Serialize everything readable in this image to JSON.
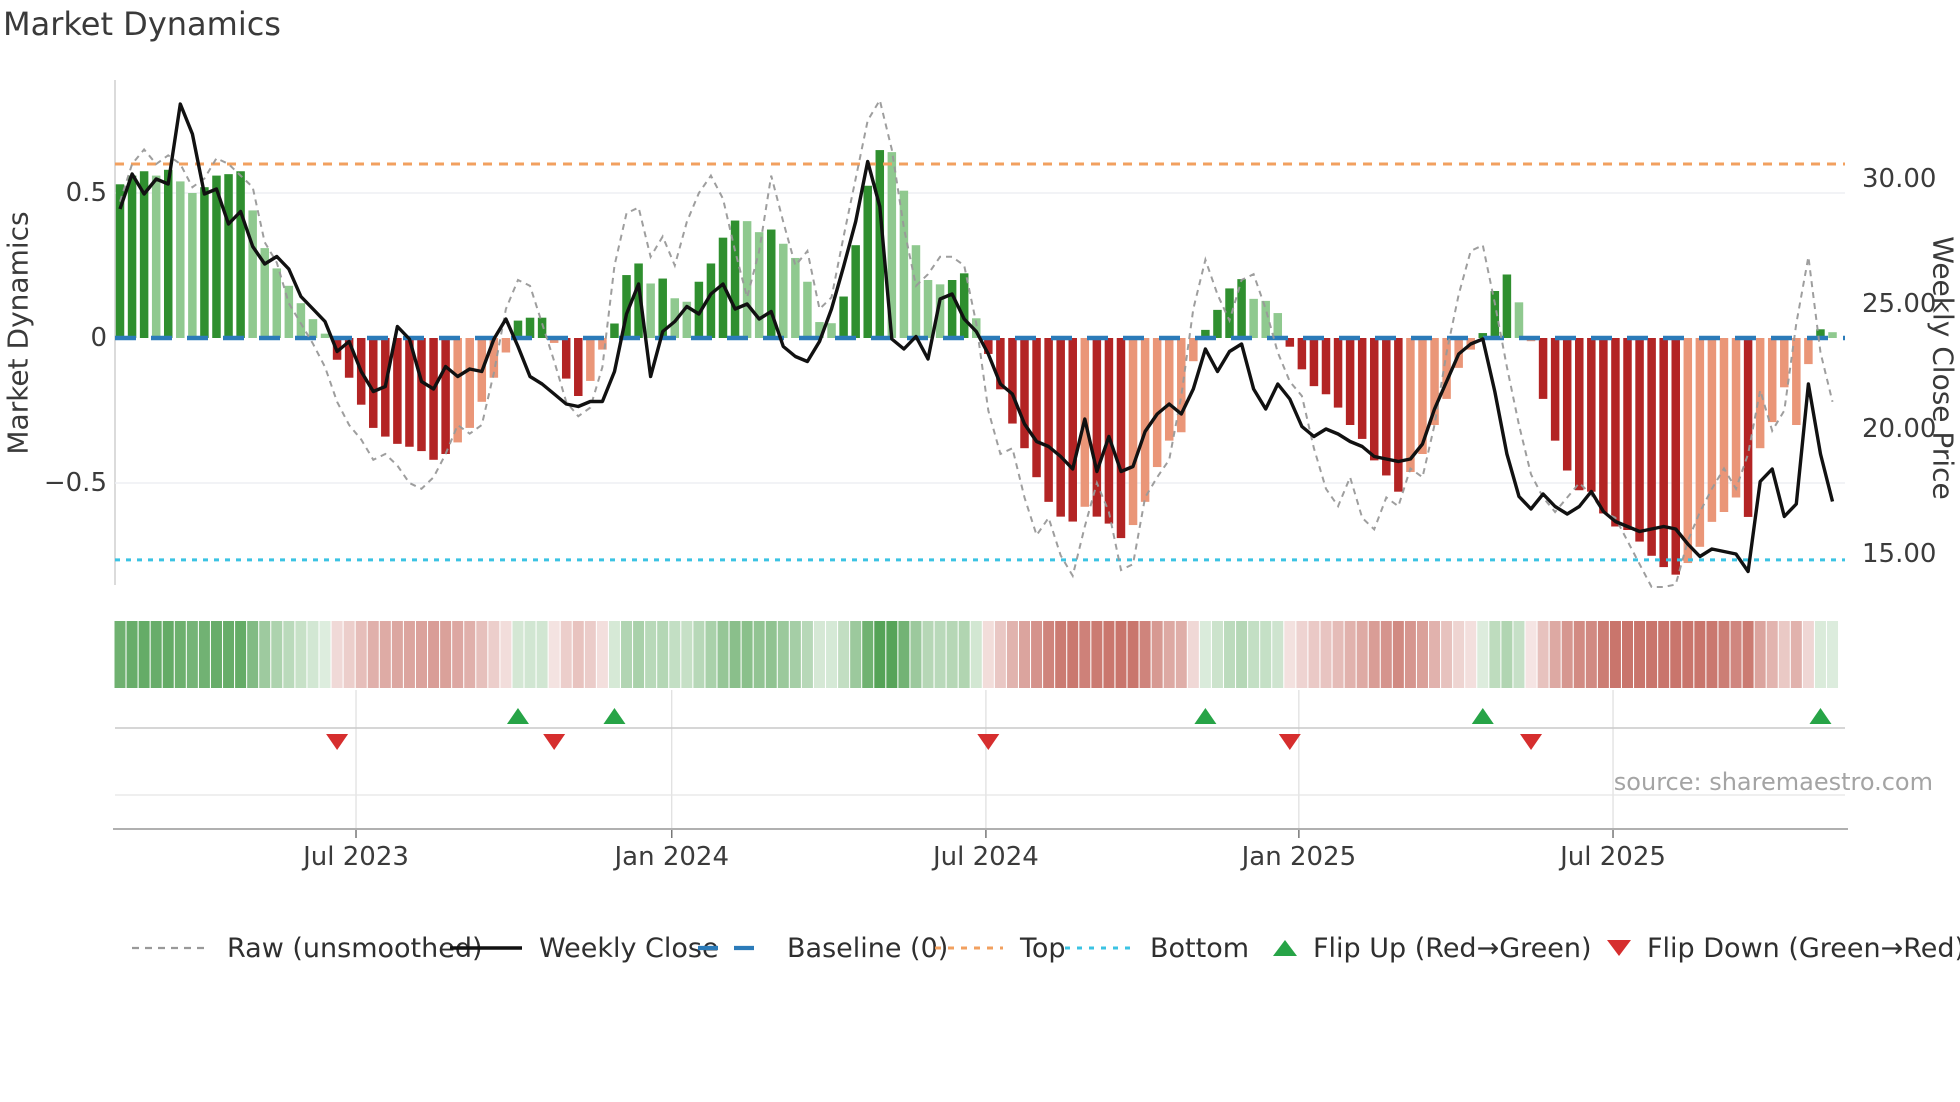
{
  "title": "Market Dynamics",
  "source_credit": "source: sharemaestro.com",
  "axes": {
    "left_label": "Market Dynamics",
    "right_label": "Weekly Close Price",
    "left_ticks": [
      {
        "label": "0.5",
        "value": 0.5
      },
      {
        "label": "0",
        "value": 0
      },
      {
        "label": "−0.5",
        "value": -0.5
      }
    ],
    "right_ticks": [
      {
        "label": "30.00",
        "value": 30
      },
      {
        "label": "25.00",
        "value": 25
      },
      {
        "label": "20.00",
        "value": 20
      },
      {
        "label": "15.00",
        "value": 15
      }
    ],
    "x_ticks": [
      {
        "label": "Jul 2023",
        "week": 19.57
      },
      {
        "label": "Jan 2024",
        "week": 45.75
      },
      {
        "label": "Jul 2024",
        "week": 71.8
      },
      {
        "label": "Jan 2025",
        "week": 97.75
      },
      {
        "label": "Jul 2025",
        "week": 123.8
      }
    ]
  },
  "legend": [
    {
      "label": "Raw (unsmoothed)",
      "swatch": "gray-dashed-line"
    },
    {
      "label": "Weekly Close",
      "swatch": "black-solid-line"
    },
    {
      "label": "Baseline (0)",
      "swatch": "blue-dashed-line"
    },
    {
      "label": "Top",
      "swatch": "orange-dotted-line"
    },
    {
      "label": "Bottom",
      "swatch": "cyan-dotted-line"
    },
    {
      "label": "Flip Up (Red→Green)",
      "swatch": "green-up-triangle"
    },
    {
      "label": "Flip Down (Green→Red)",
      "swatch": "red-down-triangle"
    }
  ],
  "colors": {
    "bar_green_dark": "#2f8f2f",
    "bar_green_light": "#8fc98f",
    "bar_red_dark": "#b32424",
    "bar_red_light": "#ea9678",
    "baseline_blue": "#2b7bb9",
    "top_orange": "#f2a05f",
    "bottom_cyan": "#3bc3e3",
    "raw_gray": "#999999",
    "close_black": "#111111",
    "flip_up_green": "#27a447",
    "flip_down_red": "#d62e2e",
    "heat_green_strong": "#55a357",
    "heat_red_strong": "#c9756c",
    "grid": "#edeff4",
    "text": "#3b3b3b"
  },
  "chart_data": {
    "type": "bar",
    "x_unit": "week_index",
    "n_weeks": 143,
    "title": "Market Dynamics",
    "ylabel_left": "Market Dynamics",
    "ylabel_right": "Weekly Close Price",
    "ylim_left": [
      -0.85,
      0.89
    ],
    "ylim_right": [
      13.8,
      34.0
    ],
    "guides": {
      "baseline": 0,
      "top": 0.6,
      "bottom": -0.765
    },
    "flip_up_weeks": [
      33,
      41,
      90,
      113,
      141
    ],
    "flip_down_weeks": [
      18,
      36,
      72,
      97,
      117
    ],
    "series": [
      {
        "name": "Market Dynamics (smoothed bars)",
        "type": "bar",
        "axis": "left",
        "values": [
          0.53,
          0.56,
          0.575,
          0.56,
          0.58,
          0.54,
          0.5,
          0.52,
          0.56,
          0.565,
          0.575,
          0.44,
          0.31,
          0.24,
          0.18,
          0.12,
          0.065,
          0.015,
          -0.075,
          -0.137,
          -0.23,
          -0.31,
          -0.34,
          -0.365,
          -0.375,
          -0.39,
          -0.42,
          -0.4,
          -0.36,
          -0.31,
          -0.22,
          -0.137,
          -0.05,
          0.06,
          0.07,
          0.07,
          -0.017,
          -0.14,
          -0.2,
          -0.148,
          -0.04,
          0.05,
          0.217,
          0.257,
          0.188,
          0.205,
          0.137,
          0.125,
          0.194,
          0.257,
          0.346,
          0.405,
          0.403,
          0.365,
          0.374,
          0.325,
          0.276,
          0.194,
          0.055,
          0.051,
          0.143,
          0.32,
          0.525,
          0.648,
          0.641,
          0.508,
          0.32,
          0.2,
          0.185,
          0.2,
          0.223,
          0.068,
          -0.055,
          -0.177,
          -0.295,
          -0.38,
          -0.48,
          -0.565,
          -0.616,
          -0.633,
          -0.582,
          -0.616,
          -0.64,
          -0.69,
          -0.645,
          -0.565,
          -0.445,
          -0.354,
          -0.325,
          -0.08,
          0.028,
          0.097,
          0.171,
          0.203,
          0.135,
          0.128,
          0.086,
          -0.03,
          -0.108,
          -0.166,
          -0.194,
          -0.24,
          -0.3,
          -0.348,
          -0.422,
          -0.474,
          -0.53,
          -0.462,
          -0.4,
          -0.3,
          -0.21,
          -0.103,
          -0.04,
          0.017,
          0.162,
          0.219,
          0.123,
          -0.011,
          -0.21,
          -0.354,
          -0.457,
          -0.525,
          -0.53,
          -0.605,
          -0.65,
          -0.662,
          -0.702,
          -0.751,
          -0.79,
          -0.816,
          -0.776,
          -0.72,
          -0.634,
          -0.6,
          -0.55,
          -0.617,
          -0.38,
          -0.29,
          -0.17,
          -0.3,
          -0.09,
          0.03,
          0.02
        ],
        "dark_shade": [
          1,
          1,
          1,
          0,
          1,
          0,
          0,
          1,
          1,
          1,
          1,
          0,
          0,
          0,
          0,
          0,
          0,
          0,
          1,
          1,
          1,
          1,
          1,
          1,
          1,
          1,
          1,
          1,
          0,
          0,
          0,
          0,
          0,
          1,
          1,
          1,
          0,
          1,
          1,
          0,
          0,
          1,
          1,
          1,
          0,
          1,
          0,
          0,
          1,
          1,
          1,
          1,
          0,
          0,
          1,
          0,
          0,
          0,
          0,
          0,
          1,
          1,
          1,
          1,
          0,
          0,
          0,
          0,
          0,
          1,
          1,
          0,
          1,
          1,
          1,
          1,
          1,
          1,
          1,
          1,
          0,
          1,
          1,
          1,
          0,
          0,
          0,
          0,
          0,
          0,
          1,
          1,
          1,
          1,
          0,
          0,
          0,
          1,
          1,
          1,
          1,
          1,
          1,
          1,
          1,
          1,
          1,
          0,
          0,
          0,
          0,
          0,
          0,
          1,
          1,
          1,
          0,
          0,
          1,
          1,
          1,
          1,
          1,
          1,
          1,
          1,
          1,
          1,
          1,
          1,
          0,
          0,
          0,
          0,
          0,
          1,
          0,
          0,
          0,
          0,
          0,
          1,
          0
        ]
      },
      {
        "name": "Raw (unsmoothed)",
        "type": "line",
        "axis": "left",
        "values": [
          0.47,
          0.6,
          0.65,
          0.6,
          0.63,
          0.6,
          0.52,
          0.55,
          0.62,
          0.6,
          0.56,
          0.52,
          0.33,
          0.26,
          0.12,
          0.05,
          -0.02,
          -0.1,
          -0.22,
          -0.3,
          -0.35,
          -0.42,
          -0.4,
          -0.44,
          -0.5,
          -0.52,
          -0.48,
          -0.4,
          -0.3,
          -0.33,
          -0.3,
          -0.12,
          0.1,
          0.2,
          0.18,
          0.05,
          -0.08,
          -0.22,
          -0.27,
          -0.24,
          -0.1,
          0.25,
          0.43,
          0.45,
          0.28,
          0.35,
          0.25,
          0.4,
          0.5,
          0.56,
          0.48,
          0.3,
          0.14,
          0.3,
          0.56,
          0.4,
          0.25,
          0.3,
          0.1,
          0.14,
          0.35,
          0.55,
          0.75,
          0.82,
          0.65,
          0.38,
          0.18,
          0.22,
          0.28,
          0.28,
          0.25,
          0.05,
          -0.25,
          -0.4,
          -0.38,
          -0.55,
          -0.68,
          -0.62,
          -0.75,
          -0.82,
          -0.65,
          -0.5,
          -0.6,
          -0.8,
          -0.78,
          -0.55,
          -0.48,
          -0.42,
          -0.2,
          0.1,
          0.27,
          0.15,
          0.06,
          0.2,
          0.22,
          0.1,
          -0.05,
          -0.15,
          -0.2,
          -0.38,
          -0.52,
          -0.58,
          -0.48,
          -0.62,
          -0.66,
          -0.55,
          -0.58,
          -0.45,
          -0.48,
          -0.3,
          -0.05,
          0.15,
          0.3,
          0.32,
          0.12,
          -0.1,
          -0.3,
          -0.47,
          -0.55,
          -0.6,
          -0.55,
          -0.5,
          -0.54,
          -0.6,
          -0.62,
          -0.7,
          -0.78,
          -0.86,
          -0.88,
          -0.85,
          -0.7,
          -0.6,
          -0.52,
          -0.45,
          -0.52,
          -0.4,
          -0.18,
          -0.32,
          -0.25,
          0.05,
          0.28,
          -0.05,
          -0.22
        ]
      },
      {
        "name": "Weekly Close",
        "type": "line",
        "axis": "right",
        "values": [
          28.8,
          30.2,
          29.4,
          30.0,
          29.8,
          33.0,
          31.8,
          29.4,
          29.6,
          28.2,
          28.7,
          27.3,
          26.6,
          26.9,
          26.4,
          25.3,
          24.8,
          24.3,
          23.1,
          23.5,
          22.3,
          21.5,
          21.7,
          24.1,
          23.6,
          21.9,
          21.6,
          22.5,
          22.1,
          22.4,
          22.3,
          23.6,
          24.4,
          23.3,
          22.1,
          21.8,
          21.4,
          21.0,
          20.9,
          21.1,
          21.1,
          22.3,
          24.6,
          25.8,
          22.1,
          23.9,
          24.3,
          24.9,
          24.6,
          25.4,
          25.8,
          24.8,
          25.0,
          24.4,
          24.7,
          23.3,
          22.9,
          22.7,
          23.5,
          24.8,
          26.5,
          28.3,
          30.7,
          28.9,
          23.6,
          23.2,
          23.7,
          22.8,
          25.2,
          25.4,
          24.4,
          23.9,
          23.0,
          21.8,
          21.4,
          20.2,
          19.5,
          19.3,
          18.9,
          18.4,
          20.4,
          18.3,
          19.7,
          18.3,
          18.5,
          19.9,
          20.6,
          21.0,
          20.6,
          21.6,
          23.2,
          22.3,
          23.1,
          23.4,
          21.6,
          20.8,
          21.8,
          21.2,
          20.1,
          19.7,
          20.0,
          19.8,
          19.5,
          19.3,
          18.9,
          18.8,
          18.7,
          18.8,
          19.4,
          20.8,
          21.9,
          23.0,
          23.4,
          23.6,
          21.5,
          19.0,
          17.3,
          16.8,
          17.4,
          16.9,
          16.6,
          16.9,
          17.5,
          16.7,
          16.3,
          16.1,
          15.9,
          16.0,
          16.1,
          16.0,
          15.4,
          14.9,
          15.2,
          15.1,
          15.0,
          14.3,
          17.9,
          18.4,
          16.5,
          17.0,
          21.8,
          19.0,
          17.1
        ]
      }
    ],
    "heatmap": "pastel green/red strip, one cell per week, intensity proportional to |bar value|"
  }
}
